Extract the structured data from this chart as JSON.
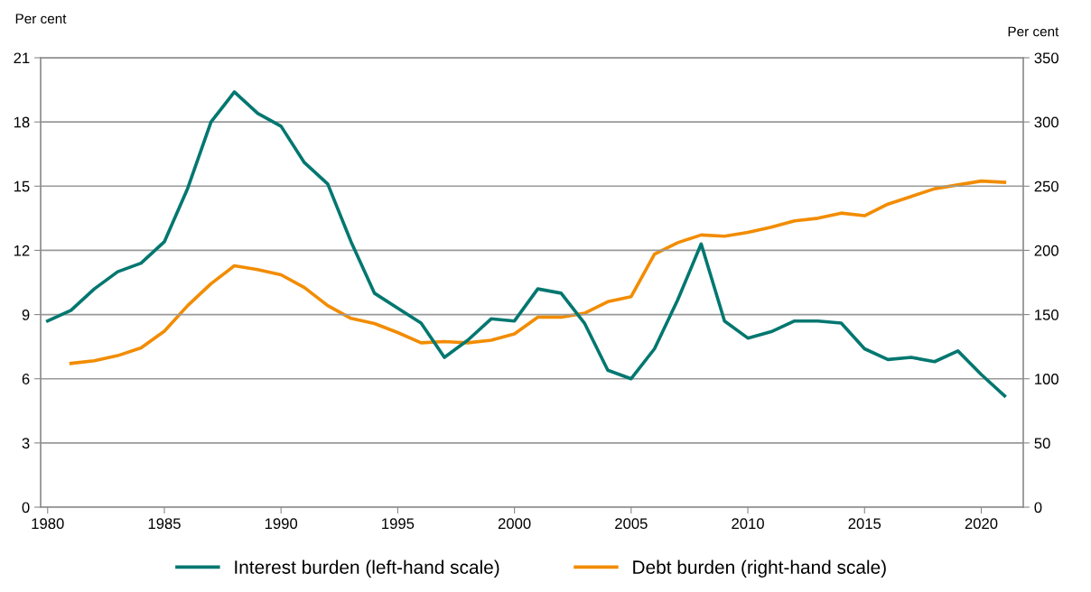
{
  "chart_data": {
    "type": "line",
    "ylabel": "Per cent",
    "y2label": "Per cent",
    "xlim": [
      1979.7,
      2021.8
    ],
    "xticks": [
      1980,
      1985,
      1990,
      1995,
      2000,
      2005,
      2010,
      2015,
      2020
    ],
    "ylim": [
      0,
      21
    ],
    "yticks": [
      0,
      3,
      6,
      9,
      12,
      15,
      18,
      21
    ],
    "y2lim": [
      0,
      350
    ],
    "y2ticks": [
      0,
      50,
      100,
      150,
      200,
      250,
      300,
      350
    ],
    "grid": "y",
    "legend": "bottom",
    "marker": "none",
    "line_style": "solid",
    "series": [
      {
        "name": "Interest burden (left-hand scale)",
        "color": "#007770",
        "x": [
          1980,
          1981,
          1982,
          1983,
          1984,
          1985,
          1986,
          1987,
          1988,
          1989,
          1990,
          1991,
          1992,
          1993,
          1994,
          1995,
          1996,
          1997,
          1998,
          1999,
          2000,
          2001,
          2002,
          2003,
          2004,
          2005,
          2006,
          2007,
          2008,
          2009,
          2010,
          2011,
          2012,
          2013,
          2014,
          2015,
          2016,
          2017,
          2018,
          2019,
          2020,
          2021
        ],
        "values": [
          8.7,
          9.2,
          10.2,
          11.0,
          11.4,
          12.4,
          14.9,
          18.0,
          19.4,
          18.4,
          17.8,
          16.1,
          15.1,
          12.4,
          10.0,
          9.3,
          8.6,
          7.0,
          7.8,
          8.8,
          8.7,
          10.2,
          10.0,
          8.6,
          6.4,
          6.0,
          7.4,
          9.7,
          12.3,
          8.7,
          7.9,
          8.2,
          8.7,
          8.7,
          8.6,
          7.4,
          6.9,
          7.0,
          6.8,
          7.3,
          6.2,
          5.2
        ]
      },
      {
        "name": "Debt burden (right-hand scale)",
        "color": "#f28c00",
        "axis": "y2",
        "x": [
          1981,
          1982,
          1983,
          1984,
          1985,
          1986,
          1987,
          1988,
          1989,
          1990,
          1991,
          1992,
          1993,
          1994,
          1995,
          1996,
          1997,
          1998,
          1999,
          2000,
          2001,
          2002,
          2003,
          2004,
          2005,
          2006,
          2007,
          2008,
          2009,
          2010,
          2011,
          2012,
          2013,
          2014,
          2015,
          2016,
          2017,
          2018,
          2019,
          2020,
          2021
        ],
        "values": [
          112,
          114,
          118,
          124,
          137,
          157,
          174,
          188,
          185,
          181,
          171,
          157,
          147,
          143,
          136,
          128,
          129,
          128,
          130,
          135,
          148,
          148,
          151,
          160,
          164,
          197,
          206,
          212,
          211,
          214,
          218,
          223,
          225,
          229,
          227,
          236,
          242,
          248,
          251,
          254,
          253
        ]
      }
    ]
  }
}
